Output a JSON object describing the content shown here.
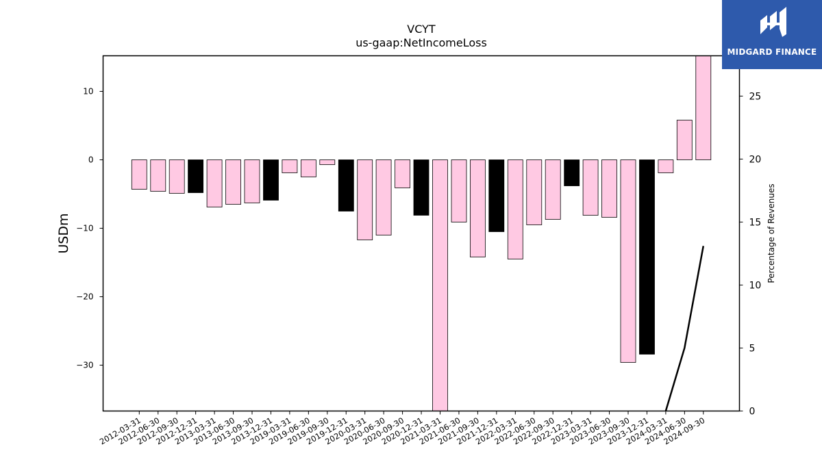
{
  "chart_data": {
    "type": "bar",
    "title": "VCYT",
    "subtitle": "us-gaap:NetIncomeLoss",
    "ylabel": "USDm",
    "y2label": "Percentage of Revenues",
    "ylim": [
      -36.7,
      15.2
    ],
    "y2lim": [
      0,
      28.2
    ],
    "yticks": [
      10,
      0,
      -10,
      -20,
      -30
    ],
    "y2ticks": [
      25,
      20,
      15,
      10,
      5,
      0
    ],
    "categories": [
      "2012-03-31",
      "2012-06-30",
      "2012-09-30",
      "2012-12-31",
      "2013-03-31",
      "2013-06-30",
      "2013-09-30",
      "2013-12-31",
      "2019-03-31",
      "2019-06-30",
      "2019-09-30",
      "2019-12-31",
      "2020-03-31",
      "2020-06-30",
      "2020-09-30",
      "2020-12-31",
      "2021-03-31",
      "2021-06-30",
      "2021-09-30",
      "2021-12-31",
      "2022-03-31",
      "2022-06-30",
      "2022-09-30",
      "2022-12-31",
      "2023-03-31",
      "2023-06-30",
      "2023-09-30",
      "2023-12-31",
      "2024-03-31",
      "2024-06-30",
      "2024-09-30"
    ],
    "values": [
      -4.3,
      -4.6,
      -4.9,
      -4.8,
      -6.9,
      -6.5,
      -6.3,
      -5.9,
      -1.9,
      -2.5,
      -0.7,
      -7.5,
      -11.7,
      -11.0,
      -4.1,
      -8.1,
      -37.0,
      -9.1,
      -14.2,
      -10.5,
      -14.5,
      -9.5,
      -8.7,
      -3.8,
      -8.1,
      -8.4,
      -29.6,
      -28.4,
      -1.9,
      5.8,
      15.2
    ],
    "quarter_end_flags": [
      false,
      false,
      false,
      true,
      false,
      false,
      false,
      true,
      false,
      false,
      false,
      true,
      false,
      false,
      false,
      true,
      false,
      false,
      false,
      true,
      false,
      false,
      false,
      true,
      false,
      false,
      false,
      true,
      false,
      false,
      false
    ],
    "colors": {
      "bar": "#ffc9e3",
      "bar_q4": "#000000",
      "edge": "#000000",
      "line": "#000000"
    },
    "line_series": {
      "x_index": [
        28,
        29,
        30
      ],
      "values": [
        0,
        5,
        13.1
      ]
    }
  },
  "logo": {
    "text": "MIDGARD FINANCE"
  }
}
